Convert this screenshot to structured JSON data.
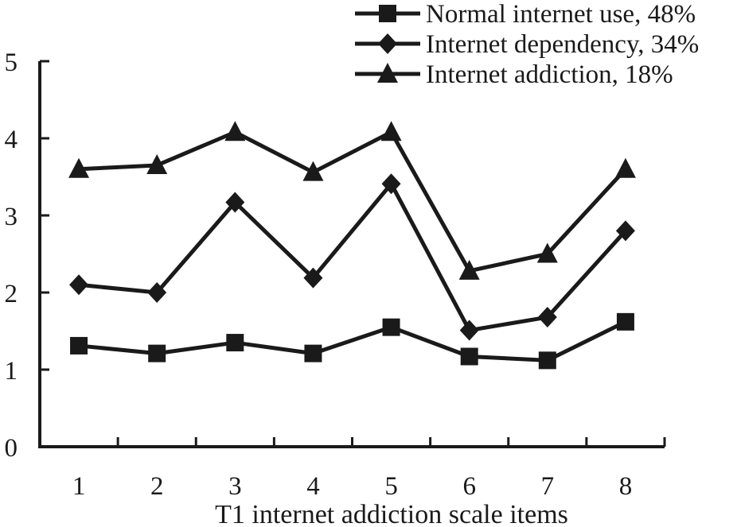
{
  "chart_data": {
    "type": "line",
    "xlabel": "T1 internet addiction scale items",
    "ylabel": "",
    "categories": [
      "1",
      "2",
      "3",
      "4",
      "5",
      "6",
      "7",
      "8"
    ],
    "ylim": [
      0,
      5
    ],
    "yticks": [
      "0",
      "1",
      "2",
      "3",
      "4",
      "5"
    ],
    "grid": false,
    "legend_position": "top-right",
    "series": [
      {
        "name": "Normal internet use, 48%",
        "marker": "square",
        "values": [
          1.31,
          1.21,
          1.35,
          1.21,
          1.55,
          1.17,
          1.12,
          1.62
        ]
      },
      {
        "name": "Internet dependency, 34%",
        "marker": "diamond",
        "values": [
          2.1,
          2.0,
          3.17,
          2.19,
          3.41,
          1.51,
          1.68,
          2.8
        ]
      },
      {
        "name": "Internet addiction, 18%",
        "marker": "triangle",
        "values": [
          3.6,
          3.65,
          4.08,
          3.56,
          4.08,
          2.28,
          2.5,
          3.6
        ]
      }
    ],
    "colors": {
      "line": "#1a1a1a",
      "marker": "#1a1a1a",
      "axis": "#1a1a1a"
    }
  }
}
